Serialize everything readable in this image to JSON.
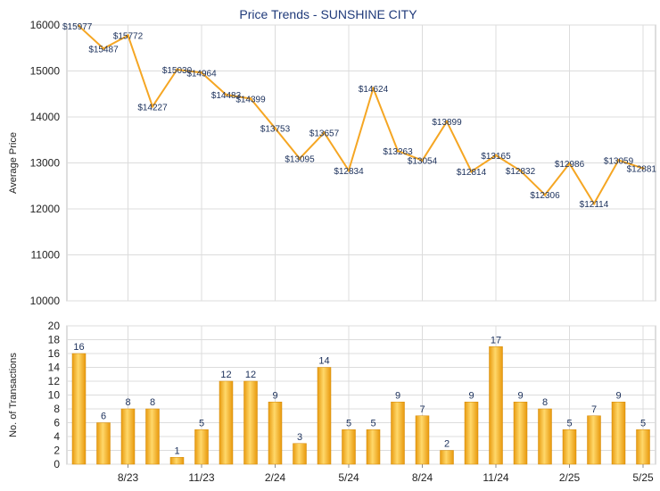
{
  "chart_data": [
    {
      "type": "line",
      "title": "Price Trends - SUNSHINE CITY",
      "ylabel": "Average Price",
      "ylim": [
        10000,
        16000
      ],
      "yticks": [
        10000,
        11000,
        12000,
        13000,
        14000,
        15000,
        16000
      ],
      "grid": true,
      "line_color": "#f5a623",
      "series": [
        {
          "values": [
            15977,
            15487,
            15772,
            14227,
            15030,
            14964,
            14483,
            14399,
            13753,
            13095,
            13657,
            12834,
            14624,
            13263,
            13054,
            13899,
            12814,
            13165,
            12832,
            12306,
            12986,
            12114,
            13059,
            12881
          ],
          "labels": [
            "$15977",
            "$15487",
            "$15772",
            "$14227",
            "$15030",
            "$14964",
            "$14483",
            "$14399",
            "$13753",
            "$13095",
            "$13657",
            "$12834",
            "$14624",
            "$13263",
            "$13054",
            "$13899",
            "$12814",
            "$13165",
            "$12832",
            "$12306",
            "$12986",
            "$12114",
            "$13059",
            "$12881"
          ]
        }
      ]
    },
    {
      "type": "bar",
      "ylabel": "No. of Transactions",
      "ylim": [
        0,
        20
      ],
      "yticks": [
        0,
        2,
        4,
        6,
        8,
        10,
        12,
        14,
        16,
        18,
        20
      ],
      "grid": true,
      "bar_color": "#f5b324",
      "values": [
        16,
        6,
        8,
        8,
        1,
        5,
        12,
        12,
        9,
        3,
        14,
        5,
        5,
        9,
        7,
        2,
        9,
        17,
        9,
        8,
        5,
        7,
        9,
        5
      ],
      "x_tick_labels": [
        {
          "index": 2,
          "label": "8/23"
        },
        {
          "index": 5,
          "label": "11/23"
        },
        {
          "index": 8,
          "label": "2/24"
        },
        {
          "index": 11,
          "label": "5/24"
        },
        {
          "index": 14,
          "label": "8/24"
        },
        {
          "index": 17,
          "label": "11/24"
        },
        {
          "index": 20,
          "label": "2/25"
        },
        {
          "index": 23,
          "label": "5/25"
        }
      ]
    }
  ]
}
